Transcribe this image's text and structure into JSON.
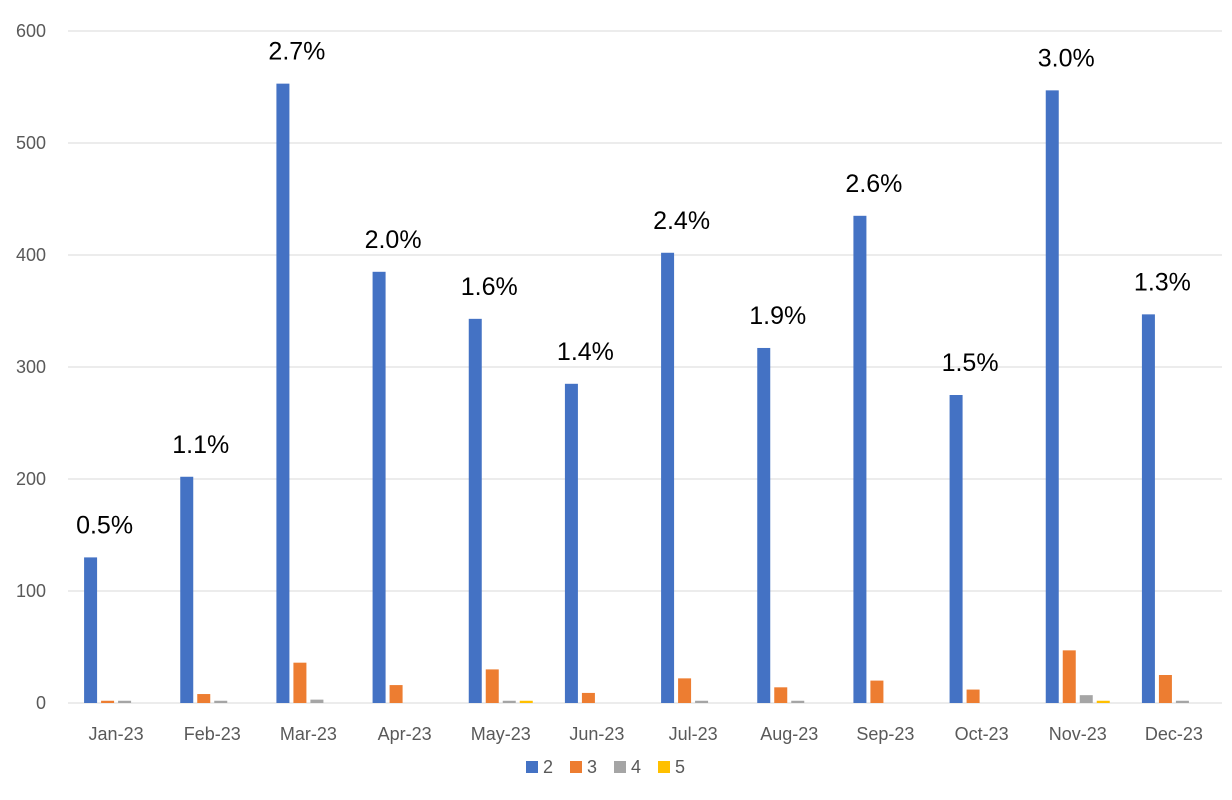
{
  "chart_data": {
    "type": "bar",
    "title": "",
    "xlabel": "",
    "ylabel": "",
    "ylim": [
      0,
      600
    ],
    "yticks": [
      0,
      100,
      200,
      300,
      400,
      500,
      600
    ],
    "grid": true,
    "legend_position": "bottom",
    "categories": [
      "Jan-23",
      "Feb-23",
      "Mar-23",
      "Apr-23",
      "May-23",
      "Jun-23",
      "Jul-23",
      "Aug-23",
      "Sep-23",
      "Oct-23",
      "Nov-23",
      "Dec-23"
    ],
    "series": [
      {
        "name": "2",
        "color": "#4472c4",
        "values": [
          130,
          202,
          553,
          385,
          343,
          285,
          402,
          317,
          435,
          275,
          547,
          347
        ]
      },
      {
        "name": "3",
        "color": "#ed7d31",
        "values": [
          2,
          8,
          36,
          16,
          30,
          9,
          22,
          14,
          20,
          12,
          47,
          25
        ]
      },
      {
        "name": "4",
        "color": "#a5a5a5",
        "values": [
          2,
          2,
          3,
          0,
          2,
          0,
          2,
          2,
          0,
          0,
          7,
          2
        ]
      },
      {
        "name": "5",
        "color": "#ffc000",
        "values": [
          0,
          0,
          0,
          0,
          2,
          0,
          0,
          0,
          0,
          0,
          2,
          0
        ]
      }
    ],
    "data_labels": [
      "0.5%",
      "1.1%",
      "2.7%",
      "2.0%",
      "1.6%",
      "1.4%",
      "2.4%",
      "1.9%",
      "2.6%",
      "1.5%",
      "3.0%",
      "1.3%"
    ]
  }
}
